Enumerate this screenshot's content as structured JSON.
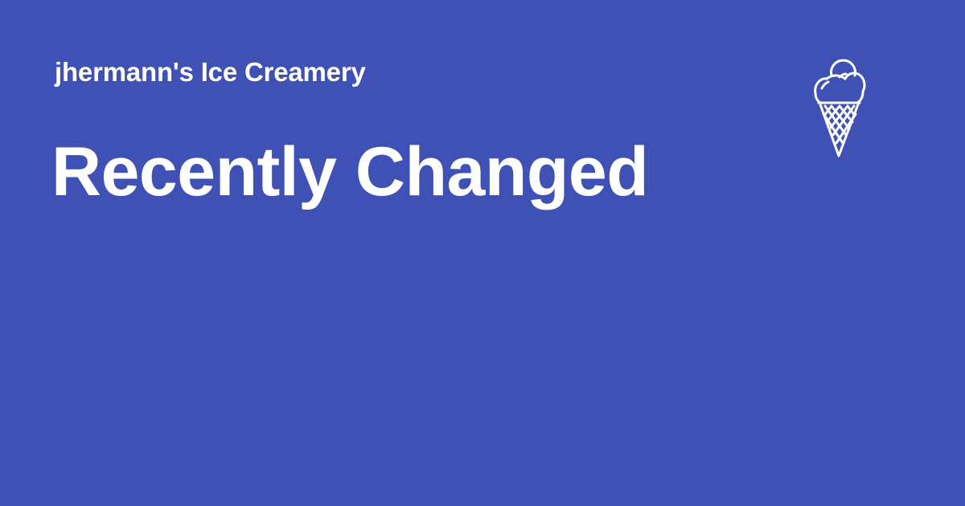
{
  "site": {
    "name": "jhermann's Ice Creamery"
  },
  "page": {
    "title": "Recently Changed"
  },
  "logo": {
    "icon": "ice-cream-cone-icon"
  },
  "colors": {
    "background": "#3f51b5",
    "foreground": "#ffffff"
  }
}
